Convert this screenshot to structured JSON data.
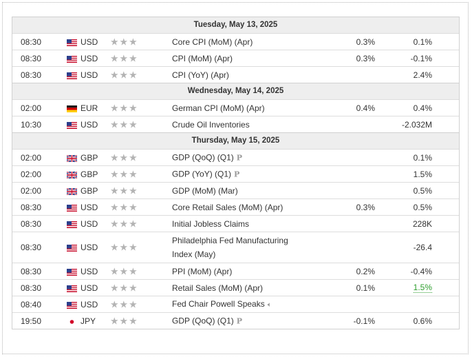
{
  "calendar": {
    "days": [
      {
        "date": "Tuesday, May 13, 2025",
        "events": [
          {
            "time": "08:30",
            "flag": "us",
            "currency": "USD",
            "stars": "★★★",
            "event": "Core CPI (MoM) (Apr)",
            "forecast": "0.3%",
            "actual": "0.1%"
          },
          {
            "time": "08:30",
            "flag": "us",
            "currency": "USD",
            "stars": "★★★",
            "event": "CPI (MoM) (Apr)",
            "forecast": "0.3%",
            "actual": "-0.1%"
          },
          {
            "time": "08:30",
            "flag": "us",
            "currency": "USD",
            "stars": "★★★",
            "event": "CPI (YoY) (Apr)",
            "forecast": "",
            "actual": "2.4%"
          }
        ]
      },
      {
        "date": "Wednesday, May 14, 2025",
        "events": [
          {
            "time": "02:00",
            "flag": "de",
            "currency": "EUR",
            "stars": "★★★",
            "event": "German CPI (MoM) (Apr)",
            "forecast": "0.4%",
            "actual": "0.4%"
          },
          {
            "time": "10:30",
            "flag": "us",
            "currency": "USD",
            "stars": "★★★",
            "event": "Crude Oil Inventories",
            "forecast": "",
            "actual": "-2.032M"
          }
        ]
      },
      {
        "date": "Thursday, May 15, 2025",
        "events": [
          {
            "time": "02:00",
            "flag": "gb",
            "currency": "GBP",
            "stars": "★★★",
            "event": "GDP (QoQ) (Q1)",
            "mark": "P",
            "forecast": "",
            "actual": "0.1%"
          },
          {
            "time": "02:00",
            "flag": "gb",
            "currency": "GBP",
            "stars": "★★★",
            "event": "GDP (YoY) (Q1)",
            "mark": "P",
            "forecast": "",
            "actual": "1.5%"
          },
          {
            "time": "02:00",
            "flag": "gb",
            "currency": "GBP",
            "stars": "★★★",
            "event": "GDP (MoM) (Mar)",
            "forecast": "",
            "actual": "0.5%"
          },
          {
            "time": "08:30",
            "flag": "us",
            "currency": "USD",
            "stars": "★★★",
            "event": "Core Retail Sales (MoM) (Apr)",
            "forecast": "0.3%",
            "actual": "0.5%"
          },
          {
            "time": "08:30",
            "flag": "us",
            "currency": "USD",
            "stars": "★★★",
            "event": "Initial Jobless Claims",
            "forecast": "",
            "actual": "228K"
          },
          {
            "time": "08:30",
            "flag": "us",
            "currency": "USD",
            "stars": "★★★",
            "event": "Philadelphia Fed Manufacturing Index (May)",
            "forecast": "",
            "actual": "-26.4",
            "tall": true
          },
          {
            "time": "08:30",
            "flag": "us",
            "currency": "USD",
            "stars": "★★★",
            "event": "PPI (MoM) (Apr)",
            "forecast": "0.2%",
            "actual": "-0.4%"
          },
          {
            "time": "08:30",
            "flag": "us",
            "currency": "USD",
            "stars": "★★★",
            "event": "Retail Sales (MoM) (Apr)",
            "forecast": "0.1%",
            "actual": "1.5%",
            "actual_color": "#2e9e2e"
          },
          {
            "time": "08:40",
            "flag": "us",
            "currency": "USD",
            "stars": "★★★",
            "event": "Fed Chair Powell Speaks",
            "speaker": true,
            "forecast": "",
            "actual": ""
          },
          {
            "time": "19:50",
            "flag": "jp",
            "currency": "JPY",
            "stars": "★★★",
            "event": "GDP (QoQ) (Q1)",
            "mark": "P",
            "forecast": "-0.1%",
            "actual": "0.6%"
          }
        ]
      }
    ]
  }
}
